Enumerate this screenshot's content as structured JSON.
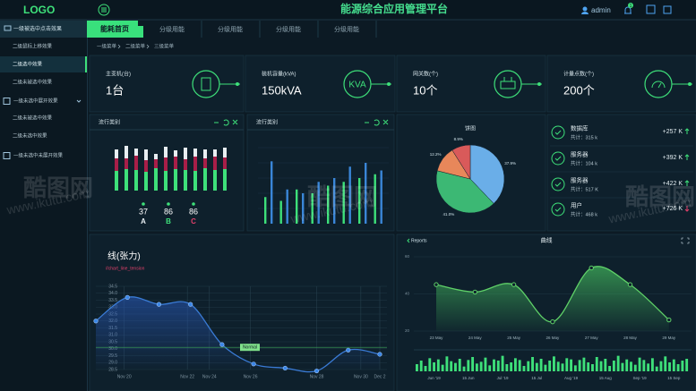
{
  "header": {
    "logo": "LOGO",
    "title": "能源综合应用管理平台",
    "user": "admin",
    "badge": "1"
  },
  "sidebar": {
    "header": "一级被选中点击效果",
    "items": [
      "二级鼠标上移效果",
      "二级选中效果",
      "二级未被选中效果",
      "一级未选中展开效果",
      "二级未被选中效果",
      "二级未选中效果",
      "一级未选中未展开效果"
    ]
  },
  "tabs": {
    "active": "能耗首页",
    "items": [
      "分级用能",
      "分级用能",
      "分级用能",
      "分级用能"
    ]
  },
  "breadcrumb": [
    "一级菜单",
    "二级菜单",
    "三级菜单"
  ],
  "stats": [
    {
      "label": "主变机(台)",
      "value": "1台"
    },
    {
      "label": "装机容量(kVA)",
      "value": "150kVA",
      "icon_text": "KVA"
    },
    {
      "label": "网关数(个)",
      "value": "10个"
    },
    {
      "label": "计量点数(个)",
      "value": "200个"
    }
  ],
  "panels": {
    "stacked_title": "流行类别",
    "bar_title": "流行类别",
    "summary": [
      {
        "value": 37,
        "label": "A"
      },
      {
        "value": 86,
        "label": "B"
      },
      {
        "value": 86,
        "label": "C"
      }
    ]
  },
  "list": [
    {
      "name": "数据库",
      "total": "共计：315 k",
      "change": "+257 K",
      "up": true
    },
    {
      "name": "服务器",
      "total": "共计：104 k",
      "change": "+392 K",
      "up": true
    },
    {
      "name": "服务器",
      "total": "共计：517 K",
      "change": "+422 K",
      "up": true
    },
    {
      "name": "用户",
      "total": "共计：468 k",
      "change": "+726 K",
      "up": false
    }
  ],
  "watermark": {
    "brand": "酷图网",
    "url": "www.ikutu.com"
  },
  "chart_data": [
    {
      "type": "stacked-bar",
      "ylim": [
        0,
        60
      ],
      "series": [
        {
          "color": "#3ee07a",
          "values": [
            22,
            24,
            23,
            21,
            25,
            22,
            24,
            23,
            22,
            25,
            23,
            24
          ]
        },
        {
          "color": "#a81e48",
          "values": [
            14,
            12,
            16,
            13,
            10,
            15,
            14,
            12,
            16,
            11,
            15,
            13
          ]
        },
        {
          "color": "#e8eef2",
          "values": [
            10,
            14,
            8,
            12,
            6,
            12,
            7,
            13,
            9,
            10,
            8,
            11
          ]
        }
      ]
    },
    {
      "type": "bar",
      "ylim": [
        0,
        100
      ],
      "series": [
        {
          "color": "#3ee07a",
          "values": [
            35,
            30,
            45,
            40,
            50,
            55,
            60,
            65
          ]
        },
        {
          "color": "#3a86d8",
          "values": [
            82,
            45,
            40,
            55,
            60,
            75,
            80,
            70
          ]
        }
      ]
    },
    {
      "type": "pie",
      "title": "饼图",
      "values": [
        37.9,
        41.0,
        12.2,
        8.9
      ],
      "value_labels": [
        "37.9%",
        "41.0%",
        "12.2%",
        "8.9%"
      ],
      "colors": [
        "#6aaee8",
        "#3cb874",
        "#e8875a",
        "#d95a5a"
      ]
    },
    {
      "type": "line",
      "title": "线(张力)",
      "subtitle": "#chart_line_tension",
      "color": "#3a7bd5",
      "x": [
        0,
        1,
        2,
        3,
        4,
        5,
        6,
        7,
        8,
        9
      ],
      "values": [
        32.0,
        33.7,
        33.2,
        33.2,
        30.3,
        28.9,
        28.6,
        28.4,
        29.9,
        29.6
      ],
      "xlim": [
        0,
        9
      ],
      "xticks": [
        {
          "value": 0.9,
          "label": "Nov 20"
        },
        {
          "value": 2.9,
          "label": "Nov 22"
        },
        {
          "value": 3.6,
          "label": "Nov 24"
        },
        {
          "value": 4.9,
          "label": "Nov 26"
        },
        {
          "value": 7.0,
          "label": "Nov 28"
        },
        {
          "value": 8.4,
          "label": "Nov 30"
        },
        {
          "value": 9.0,
          "label": "Dec 2"
        }
      ],
      "ylim": [
        28.5,
        34.5
      ],
      "yticks": [
        28.5,
        {
          "value": 29,
          "label": "29.0"
        },
        29.5,
        {
          "value": 30,
          "label": "30.0"
        },
        30.5,
        {
          "value": 31,
          "label": "31.0"
        },
        31.5,
        {
          "value": 32,
          "label": "32.0"
        },
        32.5,
        {
          "value": 33,
          "label": "33.0"
        },
        33.5,
        {
          "value": 34,
          "label": "34.0"
        },
        34.5
      ],
      "mark_line": {
        "value": 30.1,
        "label": "Normal"
      },
      "grid": true
    },
    {
      "type": "area",
      "title": "曲线",
      "back": "Reports",
      "color": "#5fd068",
      "categories": [
        "23 May",
        "24 May",
        "25 May",
        "26 May",
        "27 May",
        "28 May",
        "29 May"
      ],
      "values": [
        45,
        41,
        45,
        25,
        54,
        45,
        26
      ],
      "ylim": [
        20,
        60
      ],
      "yticks": [
        20,
        40,
        60
      ]
    },
    {
      "type": "brush-bar",
      "color": "#3ee07a",
      "ylim": [
        0,
        30
      ],
      "values": [
        12,
        18,
        9,
        22,
        15,
        20,
        11,
        25,
        17,
        14,
        21,
        8,
        19,
        24,
        13,
        16,
        23,
        10,
        20,
        18,
        26,
        12,
        15,
        22,
        19,
        9,
        17,
        24,
        14,
        21,
        11,
        18,
        25,
        16,
        13,
        22,
        20,
        10,
        19,
        23,
        15,
        12,
        24,
        17,
        21,
        9,
        18,
        26,
        14,
        20,
        16,
        11,
        23,
        19,
        13,
        22,
        8,
        17,
        25,
        15,
        20,
        12,
        18,
        21
      ],
      "xticks": [
        {
          "value": 4,
          "label": "Jun '19"
        },
        {
          "value": 12,
          "label": "15 Jun"
        },
        {
          "value": 20,
          "label": "Jul '19"
        },
        {
          "value": 28,
          "label": "15 Jul"
        },
        {
          "value": 36,
          "label": "Aug '19"
        },
        {
          "value": 44,
          "label": "15 Aug"
        },
        {
          "value": 52,
          "label": "Sep '19"
        },
        {
          "value": 60,
          "label": "15 Sep"
        }
      ]
    }
  ]
}
